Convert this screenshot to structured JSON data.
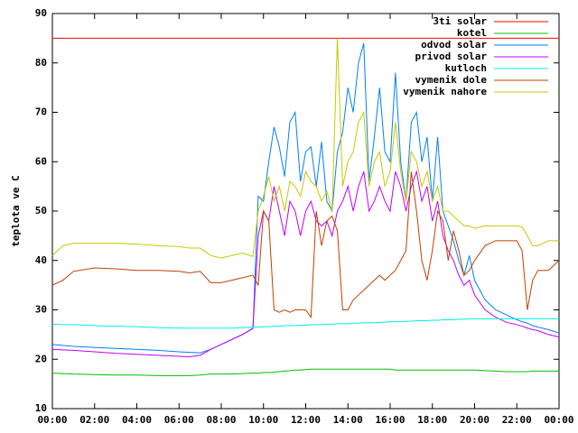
{
  "chart_data": {
    "type": "line",
    "y_label": "teplota ve C",
    "legend": "top-right",
    "grid": false,
    "xlim": [
      0,
      24
    ],
    "xticks": [
      {
        "value": 0,
        "label": "00:00"
      },
      {
        "value": 2,
        "label": "02:00"
      },
      {
        "value": 4,
        "label": "04:00"
      },
      {
        "value": 6,
        "label": "06:00"
      },
      {
        "value": 8,
        "label": "08:00"
      },
      {
        "value": 10,
        "label": "10:00"
      },
      {
        "value": 12,
        "label": "12:00"
      },
      {
        "value": 14,
        "label": "14:00"
      },
      {
        "value": 16,
        "label": "16:00"
      },
      {
        "value": 18,
        "label": "18:00"
      },
      {
        "value": 20,
        "label": "20:00"
      },
      {
        "value": 22,
        "label": "22:00"
      },
      {
        "value": 24,
        "label": "00:00"
      }
    ],
    "ylim": [
      10,
      90
    ],
    "yticks": [
      10,
      20,
      30,
      40,
      50,
      60,
      70,
      80,
      90
    ],
    "x": [
      0,
      0.5,
      1,
      2,
      3,
      4,
      5,
      6,
      6.5,
      7,
      7.5,
      8,
      8.5,
      9,
      9.5,
      9.75,
      10,
      10.25,
      10.5,
      10.75,
      11,
      11.25,
      11.5,
      11.75,
      12,
      12.25,
      12.5,
      12.75,
      13,
      13.25,
      13.5,
      13.75,
      14,
      14.25,
      14.5,
      14.75,
      15,
      15.25,
      15.5,
      15.75,
      16,
      16.25,
      16.5,
      16.75,
      17,
      17.25,
      17.5,
      17.75,
      18,
      18.25,
      18.5,
      18.75,
      19,
      19.25,
      19.5,
      19.75,
      20,
      20.5,
      21,
      21.5,
      22,
      22.25,
      22.5,
      22.75,
      23,
      23.5,
      24
    ],
    "series": [
      {
        "name": "3ti solar",
        "color": "#ff0000",
        "values": [
          85,
          85,
          85,
          85,
          85,
          85,
          85,
          85,
          85,
          85,
          85,
          85,
          85,
          85,
          85,
          85,
          85,
          85,
          85,
          85,
          85,
          85,
          85,
          85,
          85,
          85,
          85,
          85,
          85,
          85,
          85,
          85,
          85,
          85,
          85,
          85,
          85,
          85,
          85,
          85,
          85,
          85,
          85,
          85,
          85,
          85,
          85,
          85,
          85,
          85,
          85,
          85,
          85,
          85,
          85,
          85,
          85,
          85,
          85,
          85,
          85,
          85,
          85,
          85,
          85,
          85,
          85
        ]
      },
      {
        "name": "kotel",
        "color": "#00c000",
        "values": [
          17.2,
          17.1,
          17,
          16.9,
          16.8,
          16.8,
          16.7,
          16.7,
          16.7,
          16.8,
          17,
          17,
          17,
          17.1,
          17.2,
          17.2,
          17.3,
          17.3,
          17.4,
          17.5,
          17.6,
          17.7,
          17.8,
          17.8,
          17.9,
          18,
          18,
          18,
          18,
          18,
          18,
          18,
          18,
          18,
          18,
          18,
          18,
          18,
          18,
          18,
          18,
          17.8,
          17.8,
          17.8,
          17.8,
          17.8,
          17.8,
          17.8,
          17.8,
          17.8,
          17.8,
          17.8,
          17.8,
          17.8,
          17.8,
          17.8,
          17.8,
          17.7,
          17.6,
          17.5,
          17.5,
          17.5,
          17.5,
          17.6,
          17.6,
          17.6,
          17.6
        ]
      },
      {
        "name": "odvod solar",
        "color": "#0080ff",
        "values": [
          23,
          22.8,
          22.6,
          22.4,
          22.2,
          22,
          21.8,
          21.5,
          21.4,
          21.3,
          22,
          23,
          24,
          25,
          26.2,
          53,
          52,
          60,
          67,
          63,
          57,
          68,
          70,
          56,
          62,
          63,
          55,
          64,
          52,
          50,
          62,
          66,
          75,
          70,
          80,
          84,
          56,
          65,
          75,
          62,
          60,
          78,
          60,
          52,
          68,
          70,
          60,
          65,
          52,
          65,
          50,
          47,
          44,
          40,
          37,
          41,
          36,
          32,
          30,
          29,
          28,
          27.6,
          27.3,
          26.8,
          26.5,
          26,
          25.3
        ]
      },
      {
        "name": "privod solar",
        "color": "#c000ff",
        "values": [
          22,
          21.9,
          21.8,
          21.5,
          21.2,
          21,
          20.8,
          20.6,
          20.5,
          20.8,
          22,
          23,
          24,
          25,
          26.3,
          45,
          50,
          48,
          55,
          50,
          45,
          52,
          50,
          45,
          50,
          52,
          48,
          47,
          48,
          45,
          50,
          52,
          55,
          50,
          55,
          58,
          50,
          52,
          55,
          52,
          50,
          58,
          55,
          50,
          55,
          58,
          52,
          55,
          48,
          52,
          45,
          42,
          40,
          37,
          35,
          36,
          33,
          30,
          28.5,
          27.5,
          27,
          26.7,
          26.3,
          26,
          25.8,
          25,
          24.5
        ]
      },
      {
        "name": "kutloch",
        "color": "#00eeee",
        "values": [
          27.1,
          27,
          27,
          26.8,
          26.7,
          26.6,
          26.4,
          26.3,
          26.3,
          26.3,
          26.3,
          26.3,
          26.3,
          26.4,
          26.5,
          26.5,
          26.6,
          26.6,
          26.7,
          26.7,
          26.8,
          26.8,
          26.8,
          26.9,
          26.9,
          27,
          27,
          27,
          27.1,
          27.1,
          27.2,
          27.2,
          27.2,
          27.3,
          27.3,
          27.4,
          27.4,
          27.4,
          27.5,
          27.5,
          27.6,
          27.6,
          27.6,
          27.7,
          27.7,
          27.8,
          27.8,
          27.8,
          27.9,
          27.9,
          28,
          28,
          28,
          28.1,
          28.1,
          28.2,
          28.2,
          28.2,
          28.2,
          28.2,
          28.2,
          28.2,
          28.2,
          28.2,
          28.2,
          28.2,
          28.2
        ]
      },
      {
        "name": "vymenik dole",
        "color": "#c04000",
        "values": [
          35,
          36,
          37.8,
          38.5,
          38.3,
          38,
          38,
          37.8,
          37.5,
          37.8,
          35.5,
          35.5,
          36,
          36.5,
          37,
          35,
          50,
          48,
          30,
          29.5,
          30,
          29.5,
          30,
          30,
          30,
          28.5,
          50,
          43,
          48,
          49,
          46,
          30,
          30,
          32,
          33,
          34,
          35,
          36,
          37,
          36,
          37,
          38,
          40,
          42,
          58,
          50,
          40,
          36,
          42,
          50,
          48,
          40,
          46,
          42,
          37,
          38,
          40,
          43,
          44,
          44,
          44,
          42,
          30,
          36,
          38,
          38,
          40
        ]
      },
      {
        "name": "vymenik nahore",
        "color": "#c8c800",
        "values": [
          41,
          43,
          43.5,
          43.5,
          43.5,
          43.3,
          43,
          42.8,
          42.5,
          42.5,
          41,
          40.5,
          41,
          41.5,
          40.8,
          50,
          53,
          57,
          52,
          55,
          50,
          56,
          55,
          53,
          58,
          56,
          55,
          52,
          54,
          50,
          85,
          55,
          60,
          62,
          68,
          70,
          55,
          60,
          62,
          55,
          58,
          68,
          58,
          52,
          62,
          60,
          55,
          58,
          52,
          55,
          50,
          50,
          49,
          48,
          47,
          47,
          46.5,
          47,
          47,
          47,
          47,
          46.8,
          45,
          43,
          43,
          44,
          44
        ]
      }
    ]
  }
}
